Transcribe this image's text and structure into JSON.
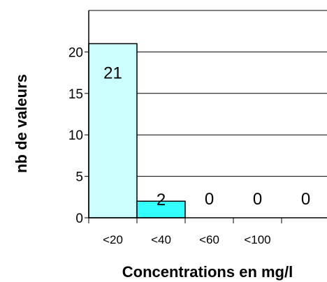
{
  "chart_data": {
    "type": "bar",
    "categories": [
      "<20",
      "<40",
      "<60",
      "<100",
      ""
    ],
    "values": [
      21,
      2,
      0,
      0,
      0
    ],
    "data_labels": [
      "21",
      "2",
      "0",
      "0",
      "0"
    ],
    "bar_colors": [
      "#ccffff",
      "#33ffff",
      "#33ffff",
      "#33ffff",
      "#33ffff"
    ],
    "bar_edge_color": "#000000",
    "title": "",
    "xlabel": "Concentrations en mg/l",
    "ylabel": "nb de valeurs",
    "ylim": [
      0,
      25
    ],
    "yticks": [
      0,
      5,
      10,
      15,
      20
    ],
    "ytick_labels": [
      "0",
      "5",
      "10",
      "15",
      "20"
    ],
    "grid": "horizontal",
    "legend": "none"
  }
}
